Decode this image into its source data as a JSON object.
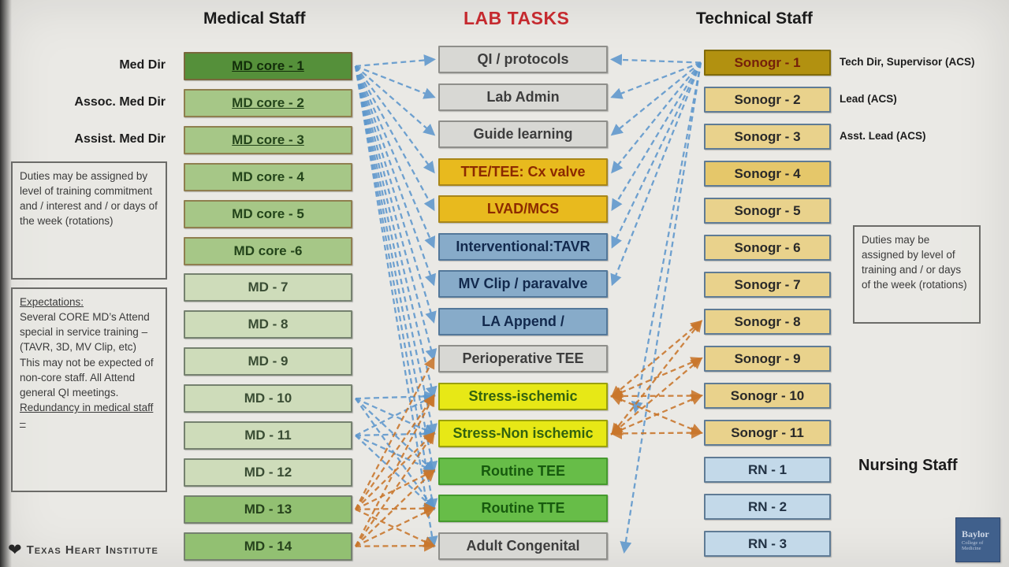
{
  "titles": {
    "medical": "Medical Staff",
    "lab": "LAB TASKS",
    "technical": "Technical Staff",
    "nursing": "Nursing Staff"
  },
  "left_roles": [
    {
      "label": "Med Dir",
      "row": 0
    },
    {
      "label": "Assoc. Med Dir",
      "row": 1
    },
    {
      "label": "Assist. Med Dir",
      "row": 2
    }
  ],
  "right_roles": [
    {
      "label": "Tech Dir, Supervisor (ACS)",
      "row": 0
    },
    {
      "label": "Lead  (ACS)",
      "row": 1
    },
    {
      "label": "Asst. Lead (ACS)",
      "row": 2
    }
  ],
  "medical_staff": [
    {
      "label": "MD core -  1",
      "style": "core1",
      "underline": true
    },
    {
      "label": "MD core - 2",
      "style": "core",
      "underline": true
    },
    {
      "label": "MD core - 3",
      "style": "core",
      "underline": true
    },
    {
      "label": "MD core - 4",
      "style": "core",
      "underline": false
    },
    {
      "label": "MD core - 5",
      "style": "core",
      "underline": false
    },
    {
      "label": "MD core -6",
      "style": "core",
      "underline": false
    },
    {
      "label": "MD - 7",
      "style": "pale",
      "underline": false
    },
    {
      "label": "MD - 8",
      "style": "pale",
      "underline": false
    },
    {
      "label": "MD - 9",
      "style": "pale",
      "underline": false
    },
    {
      "label": "MD - 10",
      "style": "pale",
      "underline": false
    },
    {
      "label": "MD - 11",
      "style": "pale",
      "underline": false
    },
    {
      "label": "MD - 12",
      "style": "pale",
      "underline": false
    },
    {
      "label": "MD - 13",
      "style": "med",
      "underline": false
    },
    {
      "label": "MD - 14",
      "style": "med",
      "underline": false
    }
  ],
  "lab_tasks": [
    {
      "label": "QI / protocols",
      "style": "task_gray"
    },
    {
      "label": "Lab Admin",
      "style": "task_gray"
    },
    {
      "label": "Guide learning",
      "style": "task_gray"
    },
    {
      "label": "TTE/TEE: Cx valve",
      "style": "task_gold"
    },
    {
      "label": "LVAD/MCS",
      "style": "task_gold"
    },
    {
      "label": "Interventional:TAVR",
      "style": "task_blue"
    },
    {
      "label": "MV Clip / paravalve",
      "style": "task_blue"
    },
    {
      "label": "LA Append /",
      "style": "task_blue"
    },
    {
      "label": "Perioperative TEE",
      "style": "task_gray"
    },
    {
      "label": "Stress-ischemic",
      "style": "task_yellow"
    },
    {
      "label": "Stress-Non ischemic",
      "style": "task_yellow"
    },
    {
      "label": "Routine TEE",
      "style": "task_green"
    },
    {
      "label": "Routine TTE",
      "style": "task_green"
    },
    {
      "label": "Adult Congenital",
      "style": "task_gray"
    }
  ],
  "technical_staff": [
    {
      "label": "Sonogr - 1",
      "style": "son1"
    },
    {
      "label": "Sonogr - 2",
      "style": "son"
    },
    {
      "label": "Sonogr - 3",
      "style": "son"
    },
    {
      "label": "Sonogr - 4",
      "style": "son4"
    },
    {
      "label": "Sonogr - 5",
      "style": "son"
    },
    {
      "label": "Sonogr - 6",
      "style": "son"
    },
    {
      "label": "Sonogr - 7",
      "style": "son"
    },
    {
      "label": "Sonogr - 8",
      "style": "son"
    },
    {
      "label": "Sonogr - 9",
      "style": "son"
    },
    {
      "label": "Sonogr - 10",
      "style": "son"
    },
    {
      "label": "Sonogr - 11",
      "style": "son"
    },
    {
      "label": "RN - 1",
      "style": "rn"
    },
    {
      "label": "RN - 2",
      "style": "rn"
    },
    {
      "label": "RN - 3",
      "style": "rn"
    }
  ],
  "notes": {
    "left_duties": "Duties may be assigned by level of training commitment and / interest and / or days of the week (rotations)",
    "expectations_segments": [
      {
        "text": "Expectations:",
        "underline": true,
        "block": true
      },
      {
        "text": "Several CORE MD’s Attend special in service training – (TAVR, 3D, MV Clip, etc)   This may not be expected of non-core staff. All Attend general QI meetings. ",
        "underline": false
      },
      {
        "text": "Redundancy in medical staff –",
        "underline": true
      }
    ],
    "right_duties": "Duties may be assigned by level of training and / or days of the week (rotations)"
  },
  "logos": {
    "texas_heart": "Texas Heart Institute",
    "baylor_line1": "Baylor",
    "baylor_line2": "College of",
    "baylor_line3": "Medicine"
  },
  "palette": {
    "lab_title": "#c52a2f",
    "blue_arrow": "#5d97cc",
    "orange_arrow": "#c9762b",
    "slide_bg": "#eae9e5"
  },
  "box_styles": {
    "core1": {
      "bg": "#55903a",
      "border": "#79683c",
      "fg": "#122d0a"
    },
    "core": {
      "bg": "#a6c787",
      "border": "#8f7f4f",
      "fg": "#23441a"
    },
    "pale": {
      "bg": "#cedcba",
      "border": "#75816f",
      "fg": "#3a4d34"
    },
    "med": {
      "bg": "#92c072",
      "border": "#75816f",
      "fg": "#26421c"
    },
    "task_gray": {
      "bg": "#d8d8d4",
      "border": "#8f8f8b",
      "fg": "#3d3d3d"
    },
    "task_gold": {
      "bg": "#e8ba1e",
      "border": "#a8861a",
      "fg": "#8c2a00"
    },
    "task_blue": {
      "bg": "#87abc9",
      "border": "#53789a",
      "fg": "#12294d"
    },
    "task_yellow": {
      "bg": "#e7e816",
      "border": "#9aa00e",
      "fg": "#33630f"
    },
    "task_green": {
      "bg": "#67bd48",
      "border": "#469a2e",
      "fg": "#175a0e"
    },
    "son1": {
      "bg": "#b29110",
      "border": "#816b0a",
      "fg": "#75200a"
    },
    "son": {
      "bg": "#e9d28c",
      "border": "#5f7b95",
      "fg": "#292929"
    },
    "son4": {
      "bg": "#e5c76a",
      "border": "#5f7b95",
      "fg": "#292929"
    },
    "rn": {
      "bg": "#c3d9e9",
      "border": "#5f7b95",
      "fg": "#223244"
    }
  },
  "connections": [
    {
      "name": "md-core1-fan",
      "color": "blue",
      "from": {
        "col": "medical",
        "index": 0
      },
      "to_tasks": [
        0,
        1,
        2,
        3,
        4,
        5,
        6,
        7,
        8,
        9,
        10,
        11,
        12,
        13
      ]
    },
    {
      "name": "sonogr1-fan",
      "color": "blue",
      "from": {
        "col": "technical",
        "index": 0
      },
      "to_tasks": [
        0,
        1,
        2,
        3,
        4,
        5,
        6
      ],
      "extra_ends": [
        [
          806,
          522
        ],
        [
          792,
          700
        ]
      ]
    },
    {
      "name": "md10-mesh",
      "color": "blue",
      "from": {
        "col": "medical",
        "index": 9
      },
      "to_tasks": [
        9,
        10,
        11,
        12
      ]
    },
    {
      "name": "md11-mesh",
      "color": "blue",
      "from": {
        "col": "medical",
        "index": 10
      },
      "to_tasks": [
        9,
        10,
        11,
        12
      ]
    },
    {
      "name": "md13-mesh",
      "color": "orange",
      "from": {
        "col": "medical",
        "index": 12
      },
      "to_tasks": [
        8,
        9,
        10,
        11,
        12,
        13
      ]
    },
    {
      "name": "md14-mesh",
      "color": "orange",
      "from": {
        "col": "medical",
        "index": 13
      },
      "to_tasks": [
        9,
        10,
        11,
        12,
        13
      ]
    },
    {
      "name": "sonogr8-stress",
      "color": "orange",
      "both": true,
      "from": {
        "col": "technical",
        "index": 7
      },
      "to_tasks": [
        9,
        10
      ]
    },
    {
      "name": "sonogr9-stress",
      "color": "orange",
      "both": true,
      "from": {
        "col": "technical",
        "index": 8
      },
      "to_tasks": [
        9,
        10
      ]
    },
    {
      "name": "sonogr10-stress",
      "color": "orange",
      "both": true,
      "from": {
        "col": "technical",
        "index": 9
      },
      "to_tasks": [
        9,
        10
      ]
    },
    {
      "name": "sonogr11-stress",
      "color": "orange",
      "both": true,
      "from": {
        "col": "technical",
        "index": 10
      },
      "to_tasks": [
        9,
        10
      ]
    }
  ]
}
